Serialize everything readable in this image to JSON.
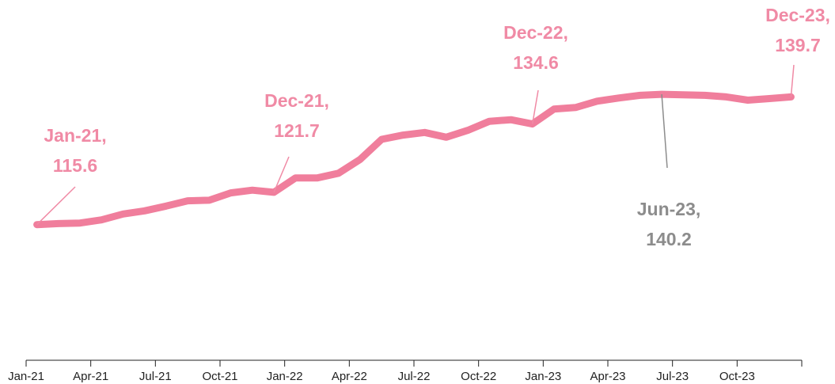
{
  "chart_data": {
    "type": "line",
    "categories": [
      "Jan-21",
      null,
      null,
      "Apr-21",
      null,
      null,
      "Jul-21",
      null,
      null,
      "Oct-21",
      null,
      null,
      "Jan-22",
      null,
      null,
      "Apr-22",
      null,
      null,
      "Jul-22",
      null,
      null,
      "Oct-22",
      null,
      null,
      "Jan-23",
      null,
      null,
      "Apr-23",
      null,
      null,
      "Jul-23",
      null,
      null,
      "Oct-23",
      null,
      null
    ],
    "series": [
      {
        "color": "#f07e9c",
        "values": [
          115.6,
          115.8,
          115.9,
          116.5,
          117.6,
          118.2,
          119.1,
          120.1,
          120.2,
          121.6,
          122.1,
          121.7,
          124.4,
          124.4,
          125.3,
          127.9,
          131.7,
          132.5,
          133.0,
          132.1,
          133.4,
          135.1,
          135.4,
          134.6,
          137.4,
          137.7,
          138.9,
          139.5,
          140.0,
          140.2,
          140.1,
          140.0,
          139.7,
          139.1,
          139.4,
          139.7
        ]
      }
    ],
    "ylim": [
      90,
      158
    ],
    "annotations": [
      {
        "lines": [
          "Jan-21,",
          "115.6"
        ],
        "color": "#f08aa5"
      },
      {
        "lines": [
          "Dec-21,",
          "121.7"
        ],
        "color": "#f08aa5"
      },
      {
        "lines": [
          "Dec-22,",
          "134.6"
        ],
        "color": "#f08aa5"
      },
      {
        "lines": [
          "Jun-23,",
          "140.2"
        ],
        "color": "#8c8c8c"
      },
      {
        "lines": [
          "Dec-23,",
          "139.7"
        ],
        "color": "#f08aa5"
      }
    ]
  }
}
